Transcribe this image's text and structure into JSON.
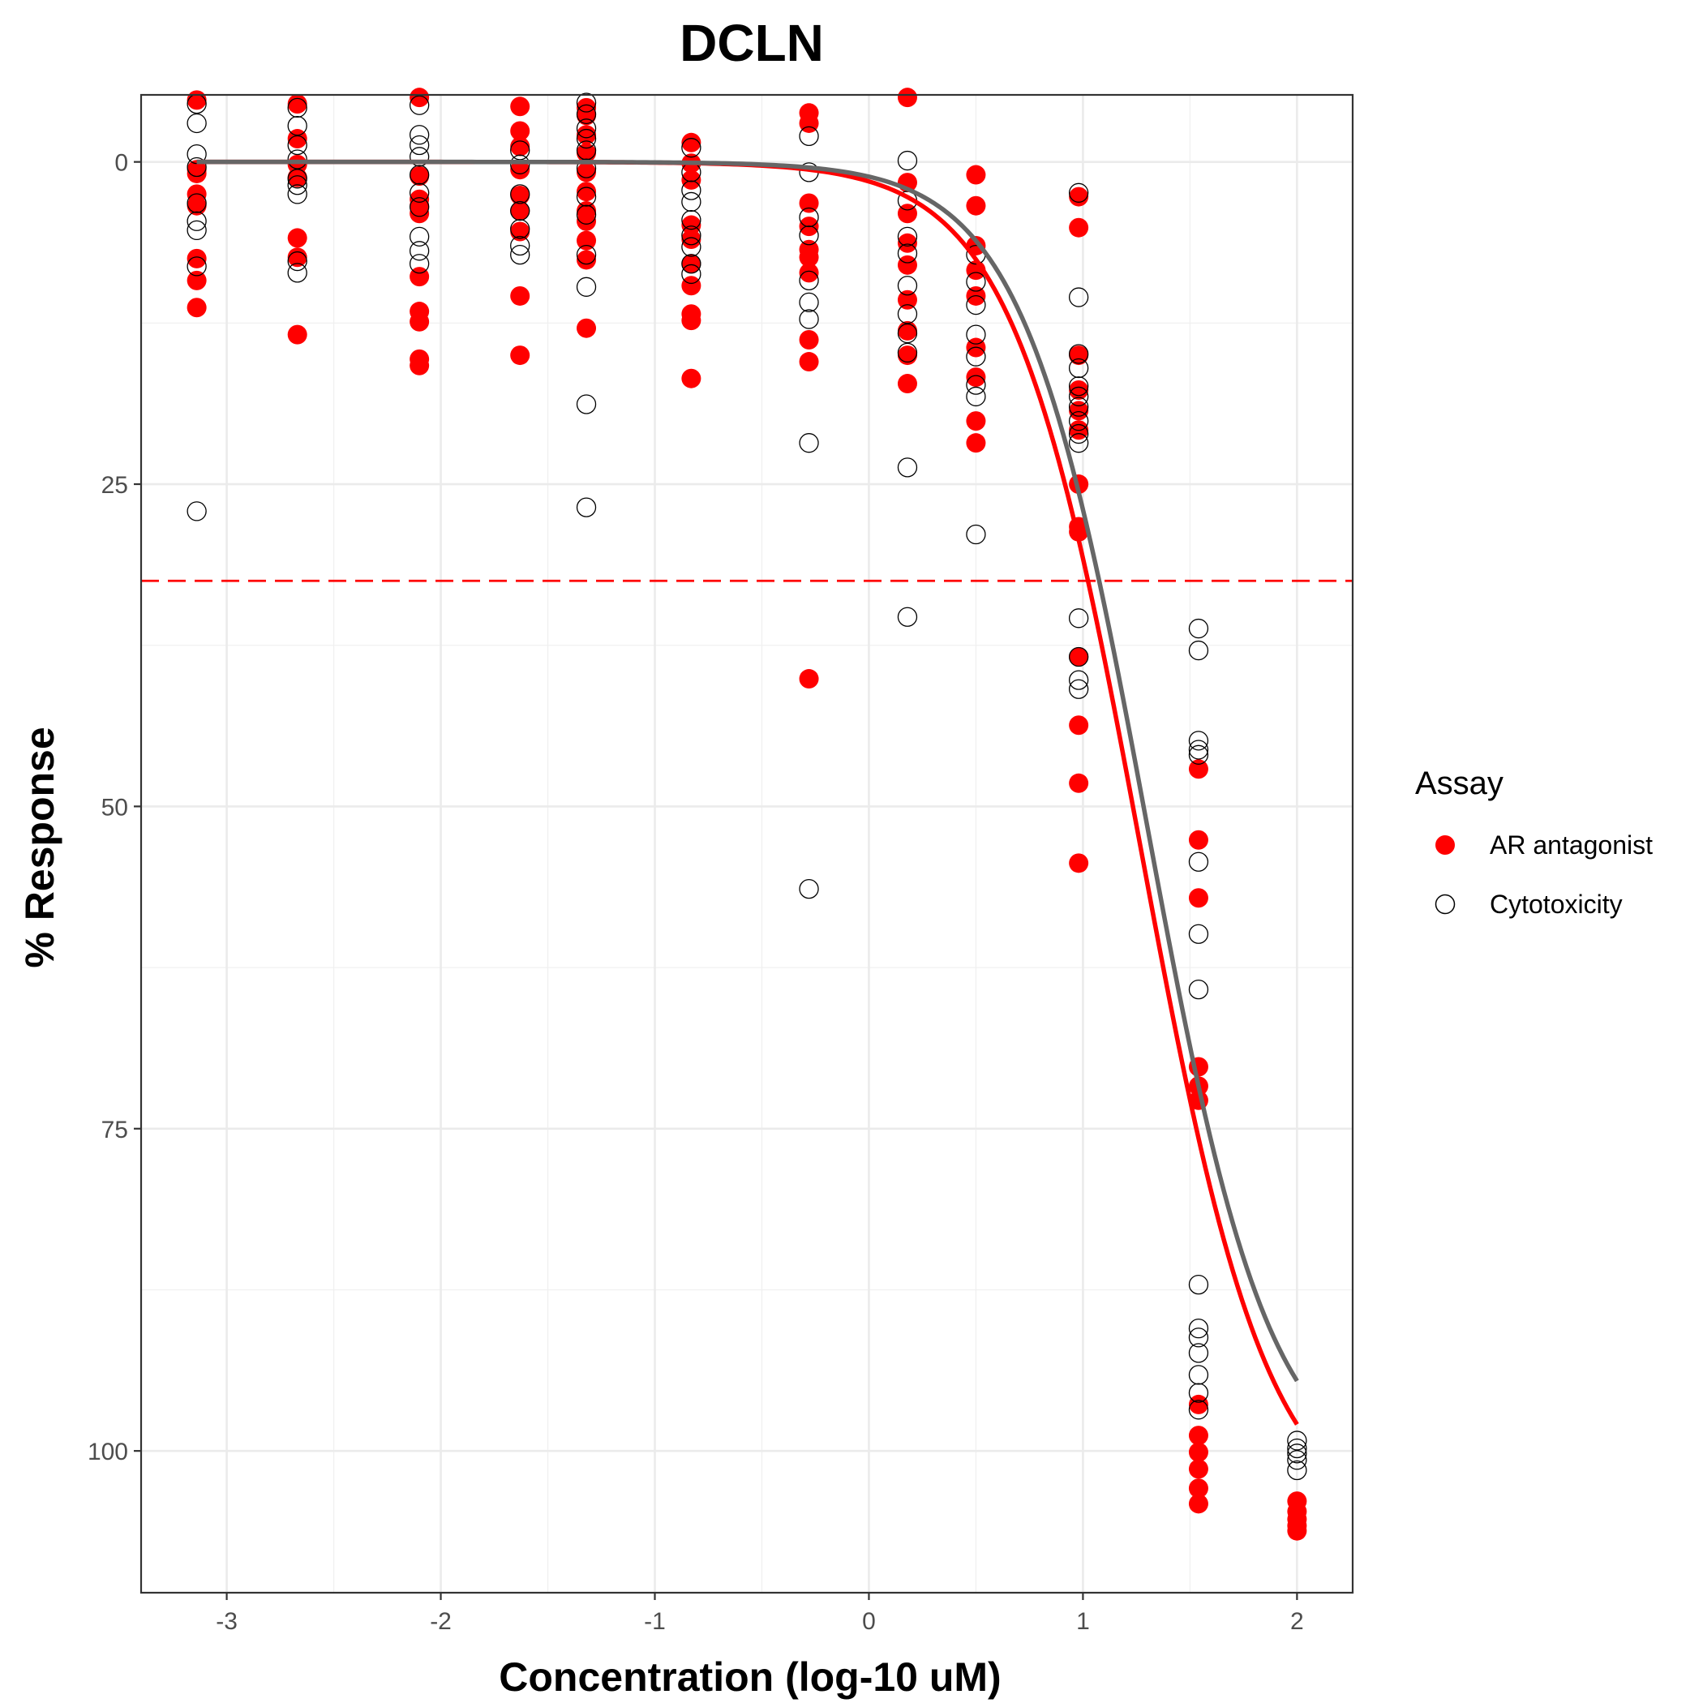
{
  "chart_data": {
    "type": "scatter",
    "title": "DCLN",
    "xlabel": "Concentration (log-10 uM)",
    "ylabel": "% Response",
    "xlim": [
      -3.4,
      2.26
    ],
    "ylim": [
      -5.2,
      111
    ],
    "y_reversed": true,
    "grid": true,
    "x_ticks": [
      -3,
      -2,
      -1,
      0,
      1,
      2
    ],
    "y_ticks": [
      0,
      25,
      50,
      75,
      100
    ],
    "legend": {
      "title": "Assay",
      "position": "right"
    },
    "threshold_line": {
      "y": 32.5,
      "color": "#ff0000",
      "style": "dashed"
    },
    "series": [
      {
        "name": "AR antagonist",
        "marker": "filled-circle",
        "color": "#ff0000",
        "points": [
          [
            -3.14,
            -4.8
          ],
          [
            -3.14,
            0.9
          ],
          [
            -3.14,
            0.6
          ],
          [
            -3.14,
            2.5
          ],
          [
            -3.14,
            3.4
          ],
          [
            -3.14,
            7.5
          ],
          [
            -3.14,
            9.2
          ],
          [
            -3.14,
            11.3
          ],
          [
            -2.67,
            -4.5
          ],
          [
            -2.67,
            -1.8
          ],
          [
            -2.67,
            0.2
          ],
          [
            -2.67,
            1.2
          ],
          [
            -2.67,
            5.9
          ],
          [
            -2.67,
            7.4
          ],
          [
            -2.67,
            13.4
          ],
          [
            -2.1,
            -5.0
          ],
          [
            -2.1,
            1.1
          ],
          [
            -2.1,
            2.9
          ],
          [
            -2.1,
            3.4
          ],
          [
            -2.1,
            4.0
          ],
          [
            -2.1,
            8.9
          ],
          [
            -2.1,
            11.6
          ],
          [
            -2.1,
            12.4
          ],
          [
            -2.1,
            15.3
          ],
          [
            -2.1,
            15.8
          ],
          [
            -1.63,
            -4.3
          ],
          [
            -1.63,
            -2.4
          ],
          [
            -1.63,
            -1.2
          ],
          [
            -1.63,
            0.6
          ],
          [
            -1.63,
            2.6
          ],
          [
            -1.63,
            3.8
          ],
          [
            -1.63,
            5.4
          ],
          [
            -1.63,
            10.4
          ],
          [
            -1.63,
            15.0
          ],
          [
            -1.32,
            -4.2
          ],
          [
            -1.32,
            -3.6
          ],
          [
            -1.32,
            -2.1
          ],
          [
            -1.32,
            -0.7
          ],
          [
            -1.32,
            0.8
          ],
          [
            -1.32,
            2.3
          ],
          [
            -1.32,
            3.8
          ],
          [
            -1.32,
            4.6
          ],
          [
            -1.32,
            6.1
          ],
          [
            -1.32,
            7.6
          ],
          [
            -1.32,
            12.9
          ],
          [
            -0.83,
            -1.5
          ],
          [
            -0.83,
            0.1
          ],
          [
            -0.83,
            1.4
          ],
          [
            -0.83,
            4.9
          ],
          [
            -0.83,
            6.0
          ],
          [
            -0.83,
            7.9
          ],
          [
            -0.83,
            9.6
          ],
          [
            -0.83,
            11.8
          ],
          [
            -0.83,
            12.3
          ],
          [
            -0.83,
            16.8
          ],
          [
            -0.28,
            -3.8
          ],
          [
            -0.28,
            -3.0
          ],
          [
            -0.28,
            3.2
          ],
          [
            -0.28,
            5.0
          ],
          [
            -0.28,
            6.8
          ],
          [
            -0.28,
            7.4
          ],
          [
            -0.28,
            8.6
          ],
          [
            -0.28,
            13.8
          ],
          [
            -0.28,
            15.5
          ],
          [
            -0.28,
            40.1
          ],
          [
            0.18,
            -5.0
          ],
          [
            0.18,
            1.6
          ],
          [
            0.18,
            4.0
          ],
          [
            0.18,
            6.3
          ],
          [
            0.18,
            8.0
          ],
          [
            0.18,
            10.7
          ],
          [
            0.18,
            13.1
          ],
          [
            0.18,
            15.0
          ],
          [
            0.18,
            17.2
          ],
          [
            0.5,
            1.0
          ],
          [
            0.5,
            3.4
          ],
          [
            0.5,
            6.5
          ],
          [
            0.5,
            8.4
          ],
          [
            0.5,
            10.4
          ],
          [
            0.5,
            14.4
          ],
          [
            0.5,
            16.7
          ],
          [
            0.5,
            20.1
          ],
          [
            0.5,
            21.8
          ],
          [
            0.98,
            2.7
          ],
          [
            0.98,
            5.1
          ],
          [
            0.98,
            15.0
          ],
          [
            0.98,
            17.7
          ],
          [
            0.98,
            19.3
          ],
          [
            0.98,
            20.8
          ],
          [
            0.98,
            25.0
          ],
          [
            0.98,
            28.3
          ],
          [
            0.98,
            28.7
          ],
          [
            0.98,
            38.4
          ],
          [
            0.98,
            43.7
          ],
          [
            0.98,
            48.2
          ],
          [
            0.98,
            54.4
          ],
          [
            1.54,
            47.1
          ],
          [
            1.54,
            52.6
          ],
          [
            1.54,
            57.1
          ],
          [
            1.54,
            70.2
          ],
          [
            1.54,
            71.7
          ],
          [
            1.54,
            72.8
          ],
          [
            1.54,
            96.4
          ],
          [
            1.54,
            98.8
          ],
          [
            1.54,
            100.1
          ],
          [
            1.54,
            101.4
          ],
          [
            1.54,
            102.9
          ],
          [
            1.54,
            104.1
          ],
          [
            2.0,
            103.9
          ],
          [
            2.0,
            104.7
          ],
          [
            2.0,
            105.3
          ],
          [
            2.0,
            105.8
          ],
          [
            2.0,
            106.2
          ]
        ]
      },
      {
        "name": "Cytotoxicity",
        "marker": "open-circle",
        "color": "#000000",
        "points": [
          [
            -3.14,
            -4.5
          ],
          [
            -3.14,
            -3.0
          ],
          [
            -3.14,
            -0.6
          ],
          [
            -3.14,
            0.4
          ],
          [
            -3.14,
            3.2
          ],
          [
            -3.14,
            4.6
          ],
          [
            -3.14,
            5.3
          ],
          [
            -3.14,
            8.1
          ],
          [
            -3.14,
            27.1
          ],
          [
            -2.67,
            -4.2
          ],
          [
            -2.67,
            -2.8
          ],
          [
            -2.67,
            -1.3
          ],
          [
            -2.67,
            -0.2
          ],
          [
            -2.67,
            1.3
          ],
          [
            -2.67,
            1.8
          ],
          [
            -2.67,
            2.5
          ],
          [
            -2.67,
            7.7
          ],
          [
            -2.67,
            8.6
          ],
          [
            -2.1,
            -4.4
          ],
          [
            -2.1,
            -2.1
          ],
          [
            -2.1,
            -1.3
          ],
          [
            -2.1,
            -0.4
          ],
          [
            -2.1,
            1.0
          ],
          [
            -2.1,
            2.4
          ],
          [
            -2.1,
            3.5
          ],
          [
            -2.1,
            5.8
          ],
          [
            -2.1,
            6.9
          ],
          [
            -2.1,
            7.9
          ],
          [
            -1.63,
            -0.9
          ],
          [
            -1.63,
            0.2
          ],
          [
            -1.63,
            2.5
          ],
          [
            -1.63,
            3.8
          ],
          [
            -1.63,
            5.2
          ],
          [
            -1.63,
            6.5
          ],
          [
            -1.63,
            7.2
          ],
          [
            -1.32,
            -4.6
          ],
          [
            -1.32,
            -3.7
          ],
          [
            -1.32,
            -2.6
          ],
          [
            -1.32,
            -1.8
          ],
          [
            -1.32,
            -0.9
          ],
          [
            -1.32,
            0.5
          ],
          [
            -1.32,
            2.7
          ],
          [
            -1.32,
            4.1
          ],
          [
            -1.32,
            7.2
          ],
          [
            -1.32,
            9.7
          ],
          [
            -1.32,
            18.8
          ],
          [
            -1.32,
            26.8
          ],
          [
            -0.83,
            -1.1
          ],
          [
            -0.83,
            0.8
          ],
          [
            -0.83,
            2.2
          ],
          [
            -0.83,
            3.1
          ],
          [
            -0.83,
            4.5
          ],
          [
            -0.83,
            5.7
          ],
          [
            -0.83,
            6.6
          ],
          [
            -0.83,
            7.9
          ],
          [
            -0.83,
            8.7
          ],
          [
            -0.28,
            -2.0
          ],
          [
            -0.28,
            0.8
          ],
          [
            -0.28,
            4.3
          ],
          [
            -0.28,
            5.7
          ],
          [
            -0.28,
            9.2
          ],
          [
            -0.28,
            10.9
          ],
          [
            -0.28,
            12.2
          ],
          [
            -0.28,
            21.8
          ],
          [
            -0.28,
            56.4
          ],
          [
            0.18,
            -0.1
          ],
          [
            0.18,
            3.0
          ],
          [
            0.18,
            5.8
          ],
          [
            0.18,
            7.1
          ],
          [
            0.18,
            9.6
          ],
          [
            0.18,
            11.8
          ],
          [
            0.18,
            13.3
          ],
          [
            0.18,
            14.8
          ],
          [
            0.18,
            23.7
          ],
          [
            0.18,
            35.3
          ],
          [
            0.5,
            7.2
          ],
          [
            0.5,
            9.3
          ],
          [
            0.5,
            11.1
          ],
          [
            0.5,
            13.4
          ],
          [
            0.5,
            15.1
          ],
          [
            0.5,
            17.3
          ],
          [
            0.5,
            18.2
          ],
          [
            0.5,
            28.9
          ],
          [
            0.98,
            2.4
          ],
          [
            0.98,
            10.5
          ],
          [
            0.98,
            14.9
          ],
          [
            0.98,
            16.0
          ],
          [
            0.98,
            17.4
          ],
          [
            0.98,
            18.2
          ],
          [
            0.98,
            19.0
          ],
          [
            0.98,
            20.1
          ],
          [
            0.98,
            21.1
          ],
          [
            0.98,
            21.8
          ],
          [
            0.98,
            35.4
          ],
          [
            0.98,
            38.4
          ],
          [
            0.98,
            40.2
          ],
          [
            0.98,
            40.9
          ],
          [
            1.54,
            36.2
          ],
          [
            1.54,
            37.9
          ],
          [
            1.54,
            44.9
          ],
          [
            1.54,
            45.6
          ],
          [
            1.54,
            46.0
          ],
          [
            1.54,
            54.3
          ],
          [
            1.54,
            59.9
          ],
          [
            1.54,
            64.2
          ],
          [
            1.54,
            87.1
          ],
          [
            1.54,
            90.5
          ],
          [
            1.54,
            91.2
          ],
          [
            1.54,
            92.4
          ],
          [
            1.54,
            94.1
          ],
          [
            1.54,
            95.5
          ],
          [
            1.54,
            96.8
          ],
          [
            2.0,
            99.2
          ],
          [
            2.0,
            99.8
          ],
          [
            2.0,
            100.2
          ],
          [
            2.0,
            100.7
          ],
          [
            2.0,
            101.5
          ]
        ]
      }
    ],
    "fit_curves": [
      {
        "series": "AR antagonist",
        "color": "#ff0000",
        "top": 0,
        "bottom": 106.5,
        "log_ac50": 1.27,
        "hill": 1.45
      },
      {
        "series": "Cytotoxicity",
        "color": "#666666",
        "top": 0,
        "bottom": 103.0,
        "log_ac50": 1.3,
        "hill": 1.5
      }
    ]
  }
}
